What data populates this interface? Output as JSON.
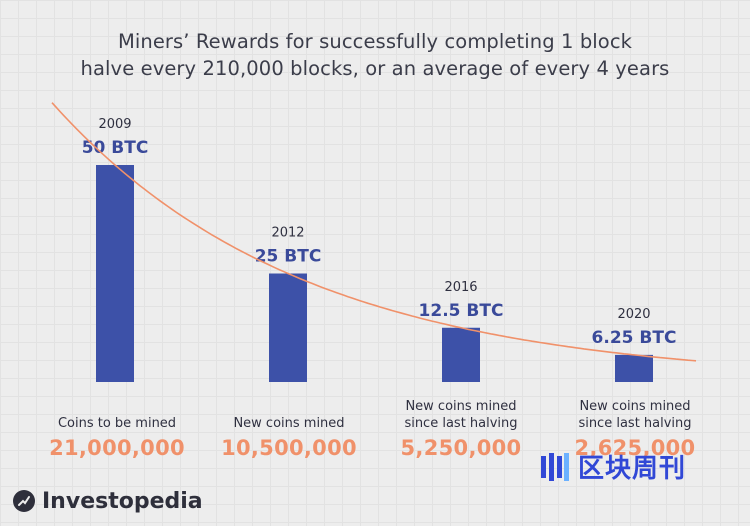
{
  "title": {
    "line1": "Miners’ Rewards for successfully completing 1 block",
    "line2": "halve every 210,000 blocks, or an average of every 4 years"
  },
  "colors": {
    "bar": "#3d51a8",
    "trend": "#f0916a",
    "year_text": "#2f3040",
    "value_text": "#3a4a9a",
    "amount_text": "#f0916a",
    "background": "#ededed"
  },
  "chart_data": {
    "type": "bar",
    "categories": [
      "2009",
      "2012",
      "2016",
      "2020"
    ],
    "values": [
      50,
      25,
      12.5,
      6.25
    ],
    "value_labels": [
      "50 BTC",
      "25 BTC",
      "12.5 BTC",
      "6.25 BTC"
    ],
    "unit": "BTC",
    "trend_line": "exponential decay",
    "ylim": [
      0,
      58
    ],
    "grid": true,
    "title": "Miners’ Rewards for successfully completing 1 block halve every 210,000 blocks, or an average of every 4 years",
    "xlabel": "",
    "ylabel": ""
  },
  "captions": [
    {
      "label": "Coins to be mined",
      "amount": "21,000,000"
    },
    {
      "label": "New coins mined",
      "amount": "10,500,000"
    },
    {
      "label": "New coins mined\nsince last halving",
      "amount": "5,250,000"
    },
    {
      "label": "New coins mined\nsince last halving",
      "amount": "2,625,000"
    }
  ],
  "branding": {
    "logo": "Investopedia",
    "watermark": "区块周刊"
  }
}
